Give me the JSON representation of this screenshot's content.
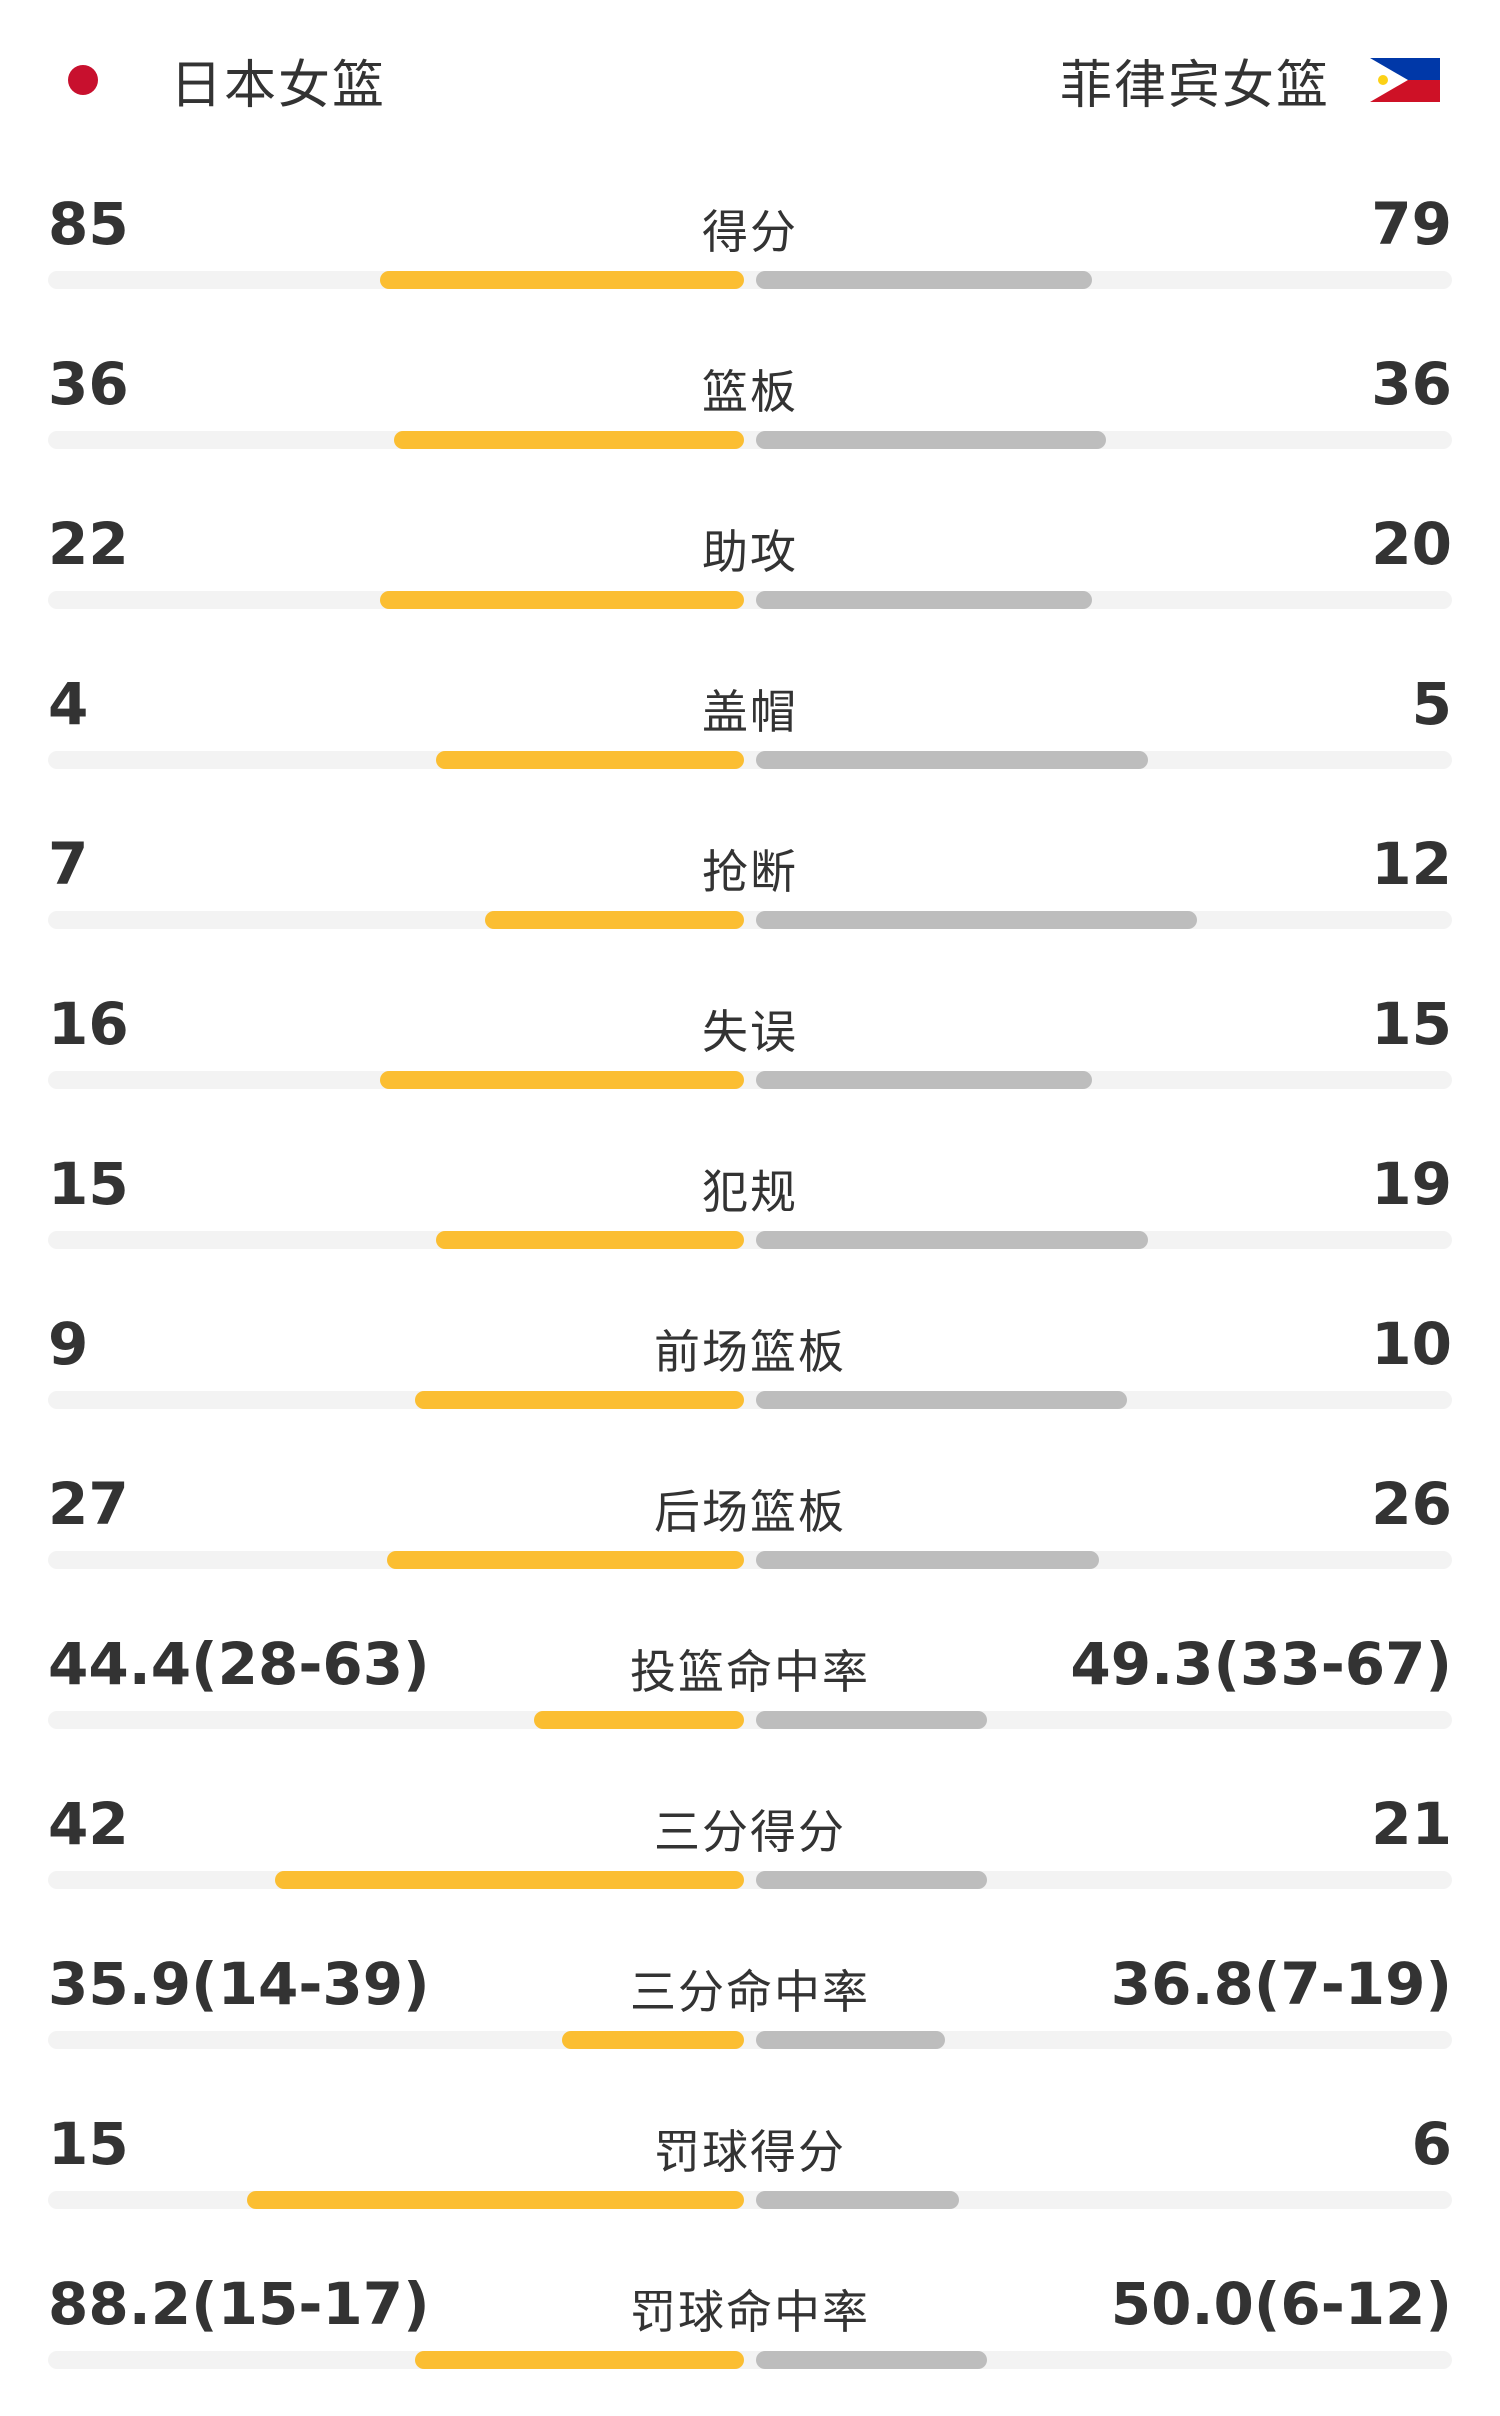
{
  "header": {
    "home_team": "日本女篮",
    "away_team": "菲律宾女篮",
    "home_flag_icon": "japan-flag-icon",
    "away_flag_icon": "philippines-flag-icon"
  },
  "colors": {
    "home_bar": "#fbbe32",
    "away_bar": "#bdbdbd",
    "track": "#f3f3f3"
  },
  "stats": [
    {
      "label": "得分",
      "home": "85",
      "away": "79",
      "home_frac": 0.52,
      "away_frac": 0.48
    },
    {
      "label": "篮板",
      "home": "36",
      "away": "36",
      "home_frac": 0.5,
      "away_frac": 0.5
    },
    {
      "label": "助攻",
      "home": "22",
      "away": "20",
      "home_frac": 0.52,
      "away_frac": 0.48
    },
    {
      "label": "盖帽",
      "home": "4",
      "away": "5",
      "home_frac": 0.44,
      "away_frac": 0.56
    },
    {
      "label": "抢断",
      "home": "7",
      "away": "12",
      "home_frac": 0.37,
      "away_frac": 0.63
    },
    {
      "label": "失误",
      "home": "16",
      "away": "15",
      "home_frac": 0.52,
      "away_frac": 0.48
    },
    {
      "label": "犯规",
      "home": "15",
      "away": "19",
      "home_frac": 0.44,
      "away_frac": 0.56
    },
    {
      "label": "前场篮板",
      "home": "9",
      "away": "10",
      "home_frac": 0.47,
      "away_frac": 0.53
    },
    {
      "label": "后场篮板",
      "home": "27",
      "away": "26",
      "home_frac": 0.51,
      "away_frac": 0.49
    },
    {
      "label": "投篮命中率",
      "home": "44.4(28-63)",
      "away": "49.3(33-67)",
      "home_frac": 0.3,
      "away_frac": 0.33
    },
    {
      "label": "三分得分",
      "home": "42",
      "away": "21",
      "home_frac": 0.67,
      "away_frac": 0.33
    },
    {
      "label": "三分命中率",
      "home": "35.9(14-39)",
      "away": "36.8(7-19)",
      "home_frac": 0.26,
      "away_frac": 0.27
    },
    {
      "label": "罚球得分",
      "home": "15",
      "away": "6",
      "home_frac": 0.71,
      "away_frac": 0.29
    },
    {
      "label": "罚球命中率",
      "home": "88.2(15-17)",
      "away": "50.0(6-12)",
      "home_frac": 0.47,
      "away_frac": 0.33
    }
  ]
}
